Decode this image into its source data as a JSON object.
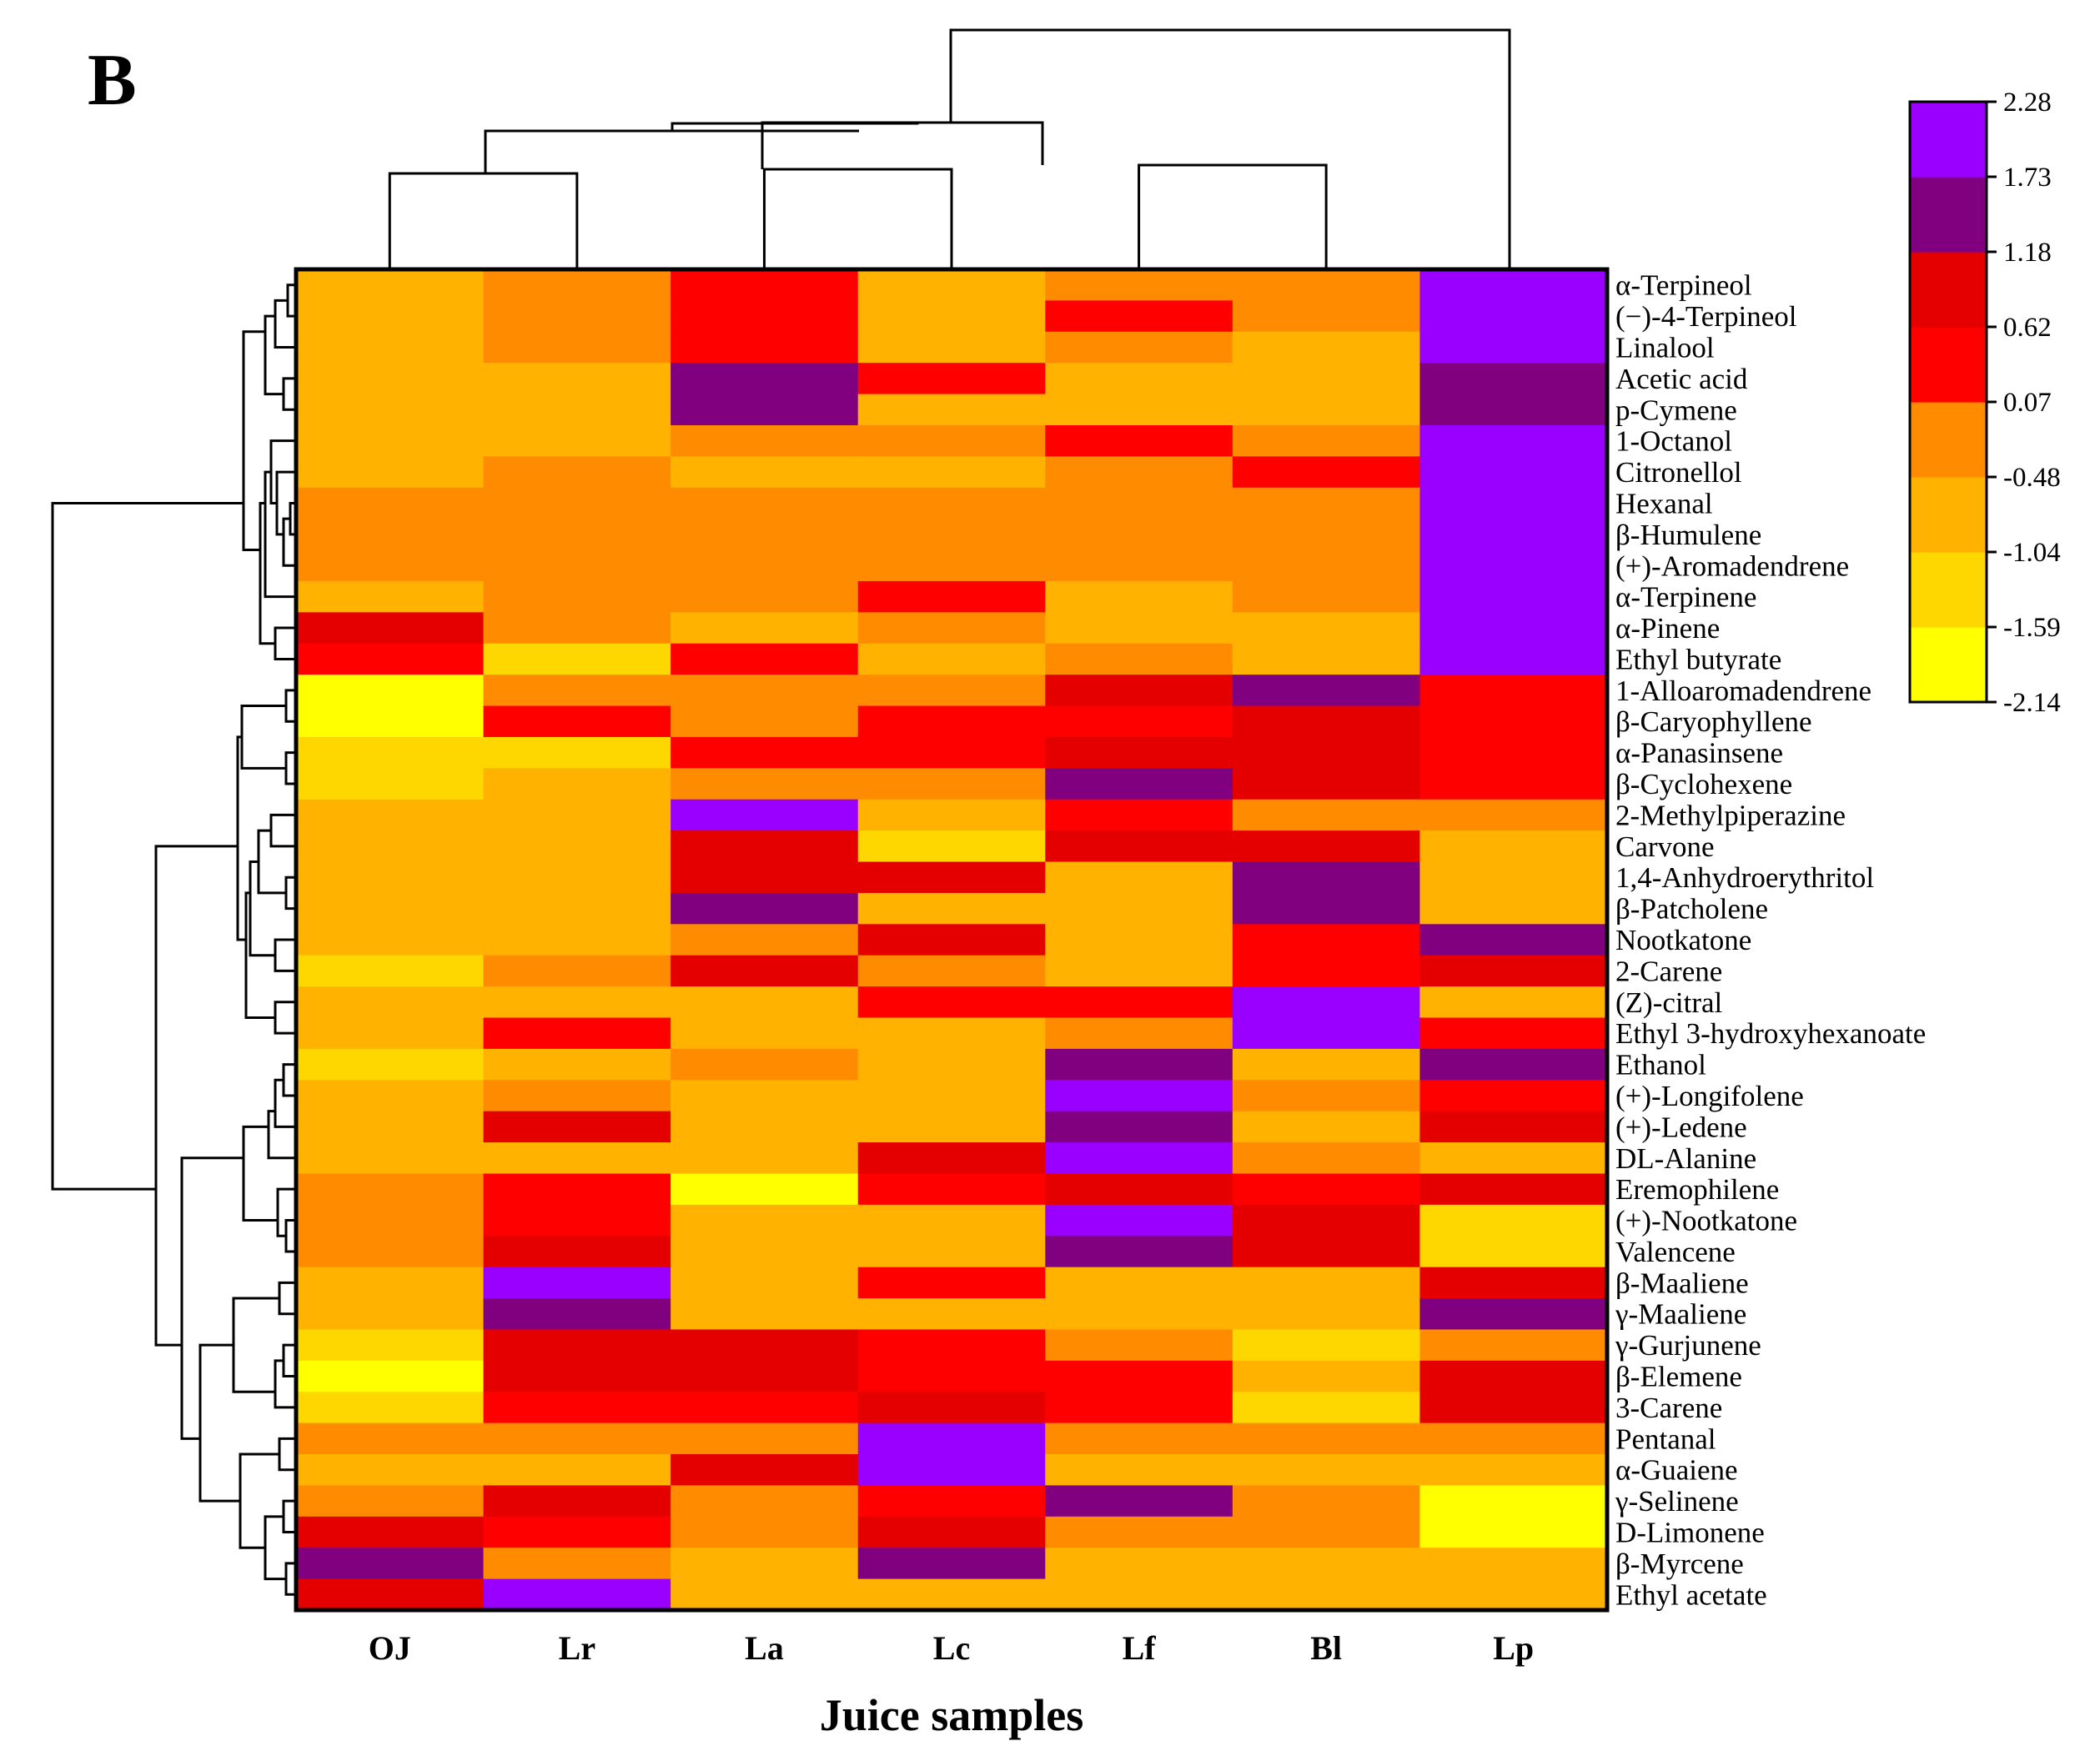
{
  "chart_data": {
    "type": "heatmap",
    "panel_label": "B",
    "xlabel": "Juice samples",
    "columns": [
      "OJ",
      "Lr",
      "La",
      "Lc",
      "Lf",
      "Bl",
      "Lp"
    ],
    "rows": [
      "α-Terpineol",
      "(−)-4-Terpineol",
      "Linalool",
      "Acetic acid",
      "p-Cymene",
      "1-Octanol",
      "Citronellol",
      "Hexanal",
      "β-Humulene",
      "(+)-Aromadendrene",
      "α-Terpinene",
      "α-Pinene",
      "Ethyl butyrate",
      "1-Alloaromadendrene",
      "β-Caryophyllene",
      "α-Panasinsene",
      "β-Cyclohexene",
      "2-Methylpiperazine",
      "Carvone",
      "1,4-Anhydroerythritol",
      "β-Patcholene",
      "Nootkatone",
      "2-Carene",
      "(Z)-citral",
      "Ethyl 3-hydroxyhexanoate",
      "Ethanol",
      "(+)-Longifolene",
      "(+)-Ledene",
      "DL-Alanine",
      "Eremophilene",
      "(+)-Nootkatone",
      "Valencene",
      "β-Maaliene",
      "γ-Maaliene",
      "γ-Gurjunene",
      "β-Elemene",
      "3-Carene",
      "Pentanal",
      "α-Guaiene",
      "γ-Selinene",
      "D-Limonene",
      "β-Myrcene",
      "Ethyl acetate"
    ],
    "values": [
      [
        -0.8,
        -0.2,
        0.3,
        -0.8,
        -0.2,
        -0.2,
        2.0
      ],
      [
        -0.8,
        -0.2,
        0.3,
        -0.8,
        0.3,
        -0.2,
        2.0
      ],
      [
        -0.8,
        -0.2,
        0.3,
        -0.8,
        -0.2,
        -0.8,
        2.0
      ],
      [
        -0.8,
        -0.8,
        1.4,
        0.3,
        -0.8,
        -0.8,
        1.4
      ],
      [
        -0.8,
        -0.8,
        1.4,
        -0.8,
        -0.8,
        -0.8,
        1.4
      ],
      [
        -0.8,
        -0.8,
        -0.2,
        -0.2,
        0.3,
        -0.2,
        2.0
      ],
      [
        -0.8,
        -0.2,
        -0.8,
        -0.8,
        -0.2,
        0.3,
        2.0
      ],
      [
        -0.2,
        -0.2,
        -0.2,
        -0.2,
        -0.2,
        -0.2,
        2.0
      ],
      [
        -0.2,
        -0.2,
        -0.2,
        -0.2,
        -0.2,
        -0.2,
        2.0
      ],
      [
        -0.2,
        -0.2,
        -0.2,
        -0.2,
        -0.2,
        -0.2,
        2.0
      ],
      [
        -0.8,
        -0.2,
        -0.2,
        0.3,
        -0.8,
        -0.2,
        2.0
      ],
      [
        0.9,
        -0.2,
        -0.8,
        -0.2,
        -0.8,
        -0.8,
        2.0
      ],
      [
        0.3,
        -1.3,
        0.3,
        -0.8,
        -0.2,
        -0.8,
        2.0
      ],
      [
        -1.9,
        -0.2,
        -0.2,
        -0.2,
        0.9,
        1.4,
        0.3
      ],
      [
        -1.9,
        0.3,
        -0.2,
        0.3,
        0.3,
        0.9,
        0.3
      ],
      [
        -1.3,
        -1.3,
        0.3,
        0.3,
        0.9,
        0.9,
        0.3
      ],
      [
        -1.3,
        -0.8,
        -0.2,
        -0.2,
        1.4,
        0.9,
        0.3
      ],
      [
        -0.8,
        -0.8,
        2.0,
        -0.8,
        0.3,
        -0.2,
        -0.2
      ],
      [
        -0.8,
        -0.8,
        0.9,
        -1.3,
        0.9,
        0.9,
        -0.8
      ],
      [
        -0.8,
        -0.8,
        0.9,
        0.9,
        -0.8,
        1.4,
        -0.8
      ],
      [
        -0.8,
        -0.8,
        1.4,
        -0.8,
        -0.8,
        1.4,
        -0.8
      ],
      [
        -0.8,
        -0.8,
        -0.2,
        0.9,
        -0.8,
        0.3,
        1.4
      ],
      [
        -1.3,
        -0.2,
        0.9,
        -0.2,
        -0.8,
        0.3,
        0.9
      ],
      [
        -0.8,
        -0.8,
        -0.8,
        0.3,
        0.3,
        2.0,
        -0.8
      ],
      [
        -0.8,
        0.3,
        -0.8,
        -0.8,
        -0.2,
        2.0,
        0.3
      ],
      [
        -1.3,
        -0.8,
        -0.2,
        -0.8,
        1.4,
        -0.8,
        1.4
      ],
      [
        -0.8,
        -0.2,
        -0.8,
        -0.8,
        2.0,
        -0.2,
        0.3
      ],
      [
        -0.8,
        0.9,
        -0.8,
        -0.8,
        1.4,
        -0.8,
        0.9
      ],
      [
        -0.8,
        -0.8,
        -0.8,
        0.9,
        2.0,
        -0.2,
        -0.8
      ],
      [
        -0.2,
        0.3,
        -1.9,
        0.3,
        0.9,
        0.3,
        0.9
      ],
      [
        -0.2,
        0.3,
        -0.8,
        -0.8,
        2.0,
        0.9,
        -1.3
      ],
      [
        -0.2,
        0.9,
        -0.8,
        -0.8,
        1.4,
        0.9,
        -1.3
      ],
      [
        -0.8,
        2.0,
        -0.8,
        0.3,
        -0.8,
        -0.8,
        0.9
      ],
      [
        -0.8,
        1.4,
        -0.8,
        -0.8,
        -0.8,
        -0.8,
        1.4
      ],
      [
        -1.3,
        0.9,
        0.9,
        0.3,
        -0.2,
        -1.3,
        -0.2
      ],
      [
        -1.9,
        0.9,
        0.9,
        0.3,
        0.3,
        -0.8,
        0.9
      ],
      [
        -1.3,
        0.3,
        0.3,
        0.9,
        0.3,
        -1.3,
        0.9
      ],
      [
        -0.2,
        -0.2,
        -0.2,
        2.0,
        -0.2,
        -0.2,
        -0.2
      ],
      [
        -0.8,
        -0.8,
        0.9,
        2.0,
        -0.8,
        -0.8,
        -0.8
      ],
      [
        -0.2,
        0.9,
        -0.2,
        0.3,
        1.4,
        -0.2,
        -1.9
      ],
      [
        0.9,
        0.3,
        -0.2,
        0.9,
        -0.2,
        -0.2,
        -1.9
      ],
      [
        1.4,
        -0.2,
        -0.8,
        1.4,
        -0.8,
        -0.8,
        -0.8
      ],
      [
        0.9,
        2.0,
        -0.8,
        -0.8,
        -0.8,
        -0.8,
        -0.8
      ]
    ],
    "colorbar": {
      "ticks": [
        "2.28",
        "1.73",
        "1.18",
        "0.62",
        "0.07",
        "-0.48",
        "-1.04",
        "-1.59",
        "-2.14"
      ],
      "range": [
        -2.14,
        2.28
      ],
      "colors": [
        "#ffff00",
        "#ffd700",
        "#ffb300",
        "#ff8c00",
        "#ff0000",
        "#e50000",
        "#800080",
        "#9900ff"
      ]
    }
  }
}
